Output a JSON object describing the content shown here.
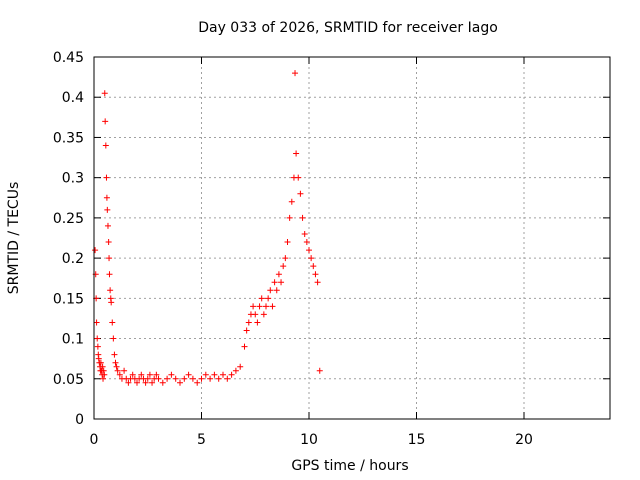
{
  "chart_data": {
    "type": "scatter",
    "title": "Day 033 of 2026, SRMTID for receiver Iago",
    "xlabel": "GPS time / hours",
    "ylabel": "SRMTID / TECUs",
    "xlim": [
      0,
      24
    ],
    "ylim": [
      0,
      0.45
    ],
    "xticks": [
      0,
      5,
      10,
      15,
      20
    ],
    "xtick_labels": [
      "0",
      "5",
      "10",
      "15",
      "20"
    ],
    "yticks": [
      0,
      0.05,
      0.1,
      0.15,
      0.2,
      0.25,
      0.3,
      0.35,
      0.4,
      0.45
    ],
    "ytick_labels": [
      "0",
      "0.05",
      "0.1",
      "0.15",
      "0.2",
      "0.25",
      "0.3",
      "0.35",
      "0.4",
      "0.45"
    ],
    "grid": true,
    "marker": "plus",
    "color": "#ff0000",
    "series": [
      {
        "name": "SRMTID",
        "points": [
          [
            0.05,
            0.21
          ],
          [
            0.08,
            0.18
          ],
          [
            0.1,
            0.15
          ],
          [
            0.12,
            0.12
          ],
          [
            0.15,
            0.1
          ],
          [
            0.18,
            0.09
          ],
          [
            0.2,
            0.08
          ],
          [
            0.22,
            0.075
          ],
          [
            0.25,
            0.07
          ],
          [
            0.28,
            0.065
          ],
          [
            0.3,
            0.06
          ],
          [
            0.32,
            0.07
          ],
          [
            0.35,
            0.06
          ],
          [
            0.38,
            0.055
          ],
          [
            0.4,
            0.065
          ],
          [
            0.42,
            0.05
          ],
          [
            0.45,
            0.06
          ],
          [
            0.48,
            0.055
          ],
          [
            0.5,
            0.405
          ],
          [
            0.52,
            0.37
          ],
          [
            0.55,
            0.34
          ],
          [
            0.58,
            0.3
          ],
          [
            0.6,
            0.275
          ],
          [
            0.62,
            0.26
          ],
          [
            0.65,
            0.24
          ],
          [
            0.68,
            0.22
          ],
          [
            0.7,
            0.2
          ],
          [
            0.72,
            0.18
          ],
          [
            0.75,
            0.16
          ],
          [
            0.78,
            0.15
          ],
          [
            0.8,
            0.145
          ],
          [
            0.85,
            0.12
          ],
          [
            0.9,
            0.1
          ],
          [
            0.95,
            0.08
          ],
          [
            1.0,
            0.07
          ],
          [
            1.05,
            0.065
          ],
          [
            1.1,
            0.06
          ],
          [
            1.2,
            0.055
          ],
          [
            1.3,
            0.05
          ],
          [
            1.4,
            0.06
          ],
          [
            1.5,
            0.05
          ],
          [
            1.6,
            0.045
          ],
          [
            1.7,
            0.05
          ],
          [
            1.8,
            0.055
          ],
          [
            1.9,
            0.05
          ],
          [
            2.0,
            0.045
          ],
          [
            2.1,
            0.05
          ],
          [
            2.2,
            0.055
          ],
          [
            2.3,
            0.05
          ],
          [
            2.4,
            0.045
          ],
          [
            2.5,
            0.05
          ],
          [
            2.6,
            0.055
          ],
          [
            2.7,
            0.045
          ],
          [
            2.8,
            0.05
          ],
          [
            2.9,
            0.055
          ],
          [
            3.0,
            0.05
          ],
          [
            3.2,
            0.045
          ],
          [
            3.4,
            0.05
          ],
          [
            3.6,
            0.055
          ],
          [
            3.8,
            0.05
          ],
          [
            4.0,
            0.045
          ],
          [
            4.2,
            0.05
          ],
          [
            4.4,
            0.055
          ],
          [
            4.6,
            0.05
          ],
          [
            4.8,
            0.045
          ],
          [
            5.0,
            0.05
          ],
          [
            5.2,
            0.055
          ],
          [
            5.4,
            0.05
          ],
          [
            5.6,
            0.055
          ],
          [
            5.8,
            0.05
          ],
          [
            6.0,
            0.055
          ],
          [
            6.2,
            0.05
          ],
          [
            6.4,
            0.055
          ],
          [
            6.6,
            0.06
          ],
          [
            6.8,
            0.065
          ],
          [
            7.0,
            0.09
          ],
          [
            7.1,
            0.11
          ],
          [
            7.2,
            0.12
          ],
          [
            7.3,
            0.13
          ],
          [
            7.4,
            0.14
          ],
          [
            7.5,
            0.13
          ],
          [
            7.6,
            0.12
          ],
          [
            7.7,
            0.14
          ],
          [
            7.8,
            0.15
          ],
          [
            7.9,
            0.13
          ],
          [
            8.0,
            0.14
          ],
          [
            8.1,
            0.15
          ],
          [
            8.2,
            0.16
          ],
          [
            8.3,
            0.14
          ],
          [
            8.4,
            0.17
          ],
          [
            8.5,
            0.16
          ],
          [
            8.6,
            0.18
          ],
          [
            8.7,
            0.17
          ],
          [
            8.8,
            0.19
          ],
          [
            8.9,
            0.2
          ],
          [
            9.0,
            0.22
          ],
          [
            9.1,
            0.25
          ],
          [
            9.2,
            0.27
          ],
          [
            9.3,
            0.3
          ],
          [
            9.35,
            0.43
          ],
          [
            9.4,
            0.33
          ],
          [
            9.5,
            0.3
          ],
          [
            9.6,
            0.28
          ],
          [
            9.7,
            0.25
          ],
          [
            9.8,
            0.23
          ],
          [
            9.9,
            0.22
          ],
          [
            10.0,
            0.21
          ],
          [
            10.1,
            0.2
          ],
          [
            10.2,
            0.19
          ],
          [
            10.3,
            0.18
          ],
          [
            10.4,
            0.17
          ],
          [
            10.5,
            0.06
          ]
        ]
      }
    ]
  }
}
